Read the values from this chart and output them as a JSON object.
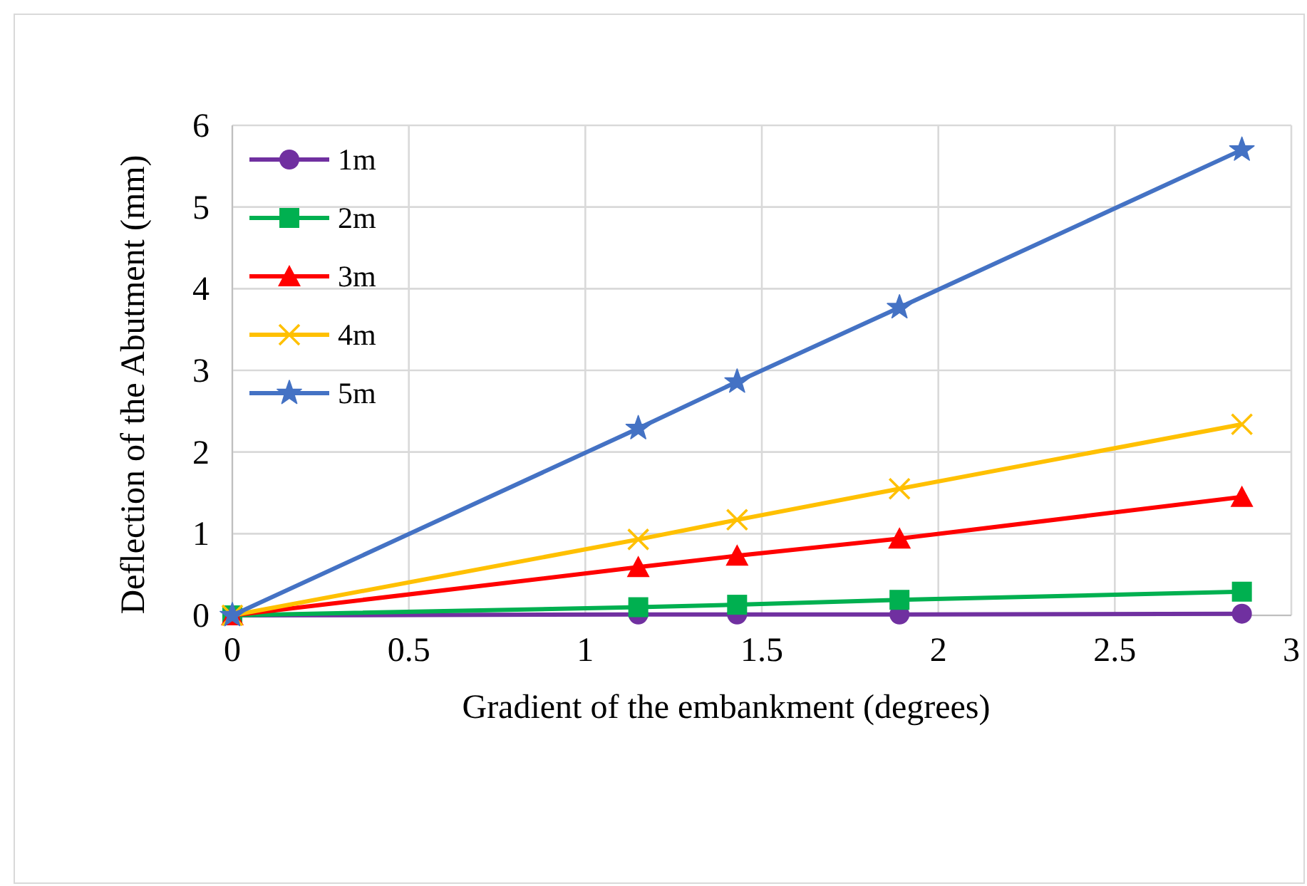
{
  "chart_data": {
    "type": "line",
    "xlabel": "Gradient of the  embankment (degrees)",
    "ylabel": "Deflection of the Abutment (mm)",
    "xlim": [
      0,
      3
    ],
    "xticks": [
      0,
      0.5,
      1,
      1.5,
      2,
      2.5,
      3
    ],
    "ylim": [
      0,
      6
    ],
    "yticks": [
      0,
      1,
      2,
      3,
      4,
      5,
      6
    ],
    "grid": true,
    "legend": "top left",
    "series": [
      {
        "name": "1m",
        "color": "#7030a0",
        "marker": "circle",
        "x": [
          0,
          1.15,
          1.43,
          1.89,
          2.86
        ],
        "values": [
          0,
          0.01,
          0.01,
          0.01,
          0.02
        ]
      },
      {
        "name": "2m",
        "color": "#00b050",
        "marker": "square",
        "x": [
          0,
          1.15,
          1.43,
          1.89,
          2.86
        ],
        "values": [
          0,
          0.1,
          0.13,
          0.19,
          0.29
        ]
      },
      {
        "name": "3m",
        "color": "#ff0000",
        "marker": "triangle",
        "x": [
          0,
          1.15,
          1.43,
          1.89,
          2.86
        ],
        "values": [
          0,
          0.59,
          0.73,
          0.94,
          1.45
        ]
      },
      {
        "name": "4m",
        "color": "#ffc000",
        "marker": "cross",
        "x": [
          0,
          1.15,
          1.43,
          1.89,
          2.86
        ],
        "values": [
          0,
          0.93,
          1.17,
          1.55,
          2.34
        ]
      },
      {
        "name": "5m",
        "color": "#4472c4",
        "marker": "star",
        "x": [
          0,
          1.15,
          1.43,
          1.89,
          2.86
        ],
        "values": [
          0,
          2.29,
          2.86,
          3.77,
          5.7
        ]
      }
    ]
  }
}
